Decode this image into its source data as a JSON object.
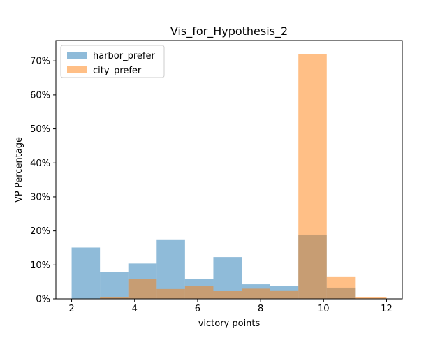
{
  "chart_data": {
    "type": "bar",
    "title": "Vis_for_Hypothesis_2",
    "xlabel": "victory points",
    "ylabel": "VP Percentage",
    "xlim": [
      1.5,
      12.5
    ],
    "ylim": [
      0,
      76
    ],
    "x_ticks": [
      2,
      4,
      6,
      8,
      10,
      12
    ],
    "x_tick_labels": [
      "2",
      "4",
      "6",
      "8",
      "10",
      "12"
    ],
    "y_ticks": [
      0,
      10,
      20,
      30,
      40,
      50,
      60,
      70
    ],
    "y_tick_labels": [
      "0%",
      "10%",
      "20%",
      "30%",
      "40%",
      "50%",
      "60%",
      "70%"
    ],
    "grid": false,
    "legend_position": "top-left",
    "series": [
      {
        "name": "harbor_prefer",
        "color": "#1f77b4",
        "opacity": 0.5,
        "bins": [
          {
            "x0": 2.0,
            "x1": 2.9,
            "value": 15.1
          },
          {
            "x0": 2.9,
            "x1": 3.8,
            "value": 8.0
          },
          {
            "x0": 3.8,
            "x1": 4.7,
            "value": 10.4
          },
          {
            "x0": 4.7,
            "x1": 5.6,
            "value": 17.5
          },
          {
            "x0": 5.6,
            "x1": 6.5,
            "value": 5.8
          },
          {
            "x0": 6.5,
            "x1": 7.4,
            "value": 12.3
          },
          {
            "x0": 7.4,
            "x1": 8.3,
            "value": 4.3
          },
          {
            "x0": 8.3,
            "x1": 9.2,
            "value": 3.9
          },
          {
            "x0": 9.2,
            "x1": 10.1,
            "value": 18.9
          },
          {
            "x0": 10.1,
            "x1": 11.0,
            "value": 3.3
          }
        ]
      },
      {
        "name": "city_prefer",
        "color": "#ff7f0e",
        "opacity": 0.5,
        "bins": [
          {
            "x0": 2.9,
            "x1": 3.8,
            "value": 0.6
          },
          {
            "x0": 3.8,
            "x1": 4.7,
            "value": 5.8
          },
          {
            "x0": 4.7,
            "x1": 5.6,
            "value": 2.9
          },
          {
            "x0": 5.6,
            "x1": 6.5,
            "value": 3.8
          },
          {
            "x0": 6.5,
            "x1": 7.4,
            "value": 2.4
          },
          {
            "x0": 7.4,
            "x1": 8.3,
            "value": 3.0
          },
          {
            "x0": 8.3,
            "x1": 9.2,
            "value": 2.5
          },
          {
            "x0": 9.2,
            "x1": 10.1,
            "value": 71.9
          },
          {
            "x0": 10.1,
            "x1": 11.0,
            "value": 6.6
          },
          {
            "x0": 11.0,
            "x1": 12.0,
            "value": 0.6
          }
        ]
      }
    ]
  }
}
